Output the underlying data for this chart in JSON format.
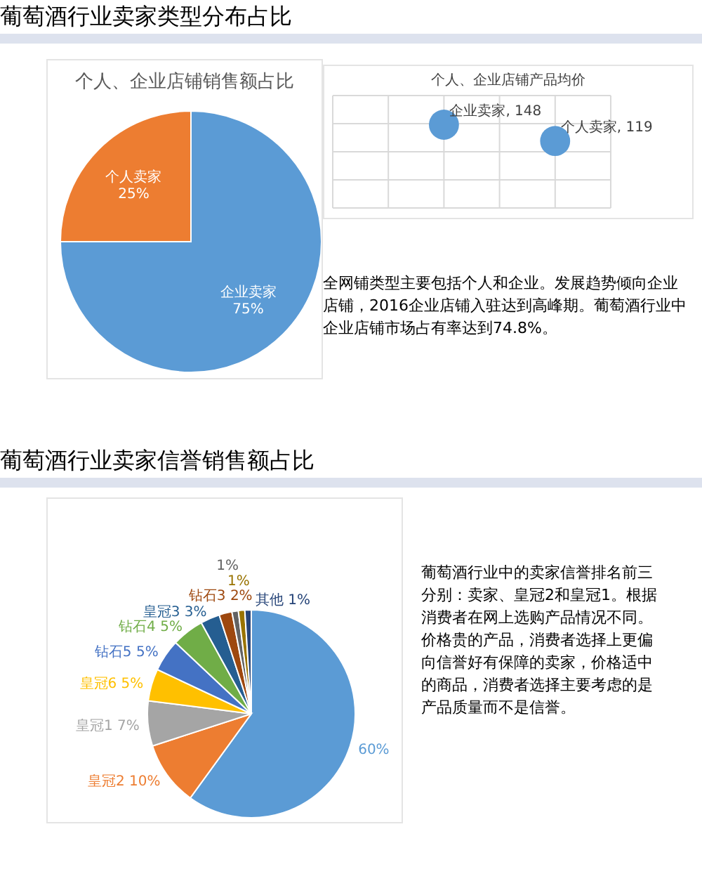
{
  "chart_data": [
    {
      "type": "pie",
      "title": "个人、企业店铺销售额占比",
      "categories": [
        "企业卖家",
        "个人卖家"
      ],
      "values": [
        75,
        25
      ],
      "colors": [
        "#5b9bd5",
        "#ed7d31"
      ],
      "value_labels": [
        "75%",
        "25%"
      ],
      "annotations": [
        "葡萄酒行业卖家类型分布占比"
      ]
    },
    {
      "type": "other",
      "title": "个人、企业店铺产品均价",
      "categories": [
        null,
        null
      ],
      "values": [
        148,
        119
      ],
      "color": "#5b9bd5",
      "value_labels": [
        "企业卖家, 148",
        "个人卖家, 119"
      ],
      "annotations": [
        "全网铺类型主要包括个人和企业。发展趋势倾向企业店铺，2016企业店铺入驻达到高峰期。葡萄酒行业中企业店铺市场占有率达到74.8%。"
      ]
    },
    {
      "type": "pie",
      "categories": [
        null,
        "皇冠2",
        "皇冠1",
        "皇冠6",
        "钻石5",
        "钻石4",
        "皇冠3",
        "钻石3",
        null,
        null,
        "其他"
      ],
      "values": [
        60,
        10,
        7,
        5,
        5,
        5,
        3,
        2,
        1,
        1,
        1
      ],
      "colors": [
        "#5b9bd5",
        "#ed7d31",
        "#a5a5a5",
        "#ffc000",
        "#4472c4",
        "#70ad47",
        "#255e91",
        "#9e480e",
        "#636363",
        "#997300",
        "#264478"
      ],
      "value_labels": [
        "60%",
        "10%",
        "7%",
        "5%",
        "5%",
        "5%",
        "3%",
        "2%",
        "1%",
        "1%",
        "1%"
      ],
      "annotations": [
        "葡萄酒行业卖家信誉销售额占比",
        "葡萄酒行业中的卖家信誉排名前三分别：卖家、皇冠2和皇冠1。根据消费者在网上选购产品情况不同。价格贵的产品，消费者选择上更偏向信誉好有保障的卖家，价格适中的商品，消费者选择主要考虑的是产品质量而不是信誉。"
      ]
    }
  ]
}
